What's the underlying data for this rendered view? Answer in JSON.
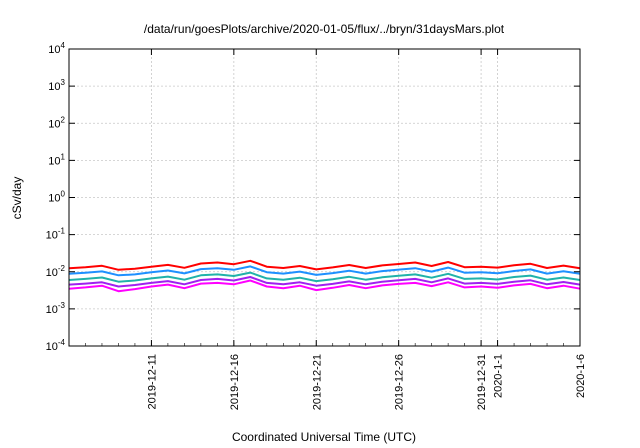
{
  "chart_data": {
    "type": "line",
    "title": "/data/run/goesPlots/archive/2020-01-05/flux/../bryn/31daysMars.plot",
    "xlabel": "Coordinated Universal Time (UTC)",
    "ylabel": "cSv/day",
    "y_scale": "log",
    "ylim": [
      0.0001,
      10000
    ],
    "y_ticks": [
      {
        "value": 0.0001,
        "base": "10",
        "exp": "-4"
      },
      {
        "value": 0.001,
        "base": "10",
        "exp": "-3"
      },
      {
        "value": 0.01,
        "base": "10",
        "exp": "-2"
      },
      {
        "value": 0.1,
        "base": "10",
        "exp": "-1"
      },
      {
        "value": 1,
        "base": "10",
        "exp": "0"
      },
      {
        "value": 10,
        "base": "10",
        "exp": "1"
      },
      {
        "value": 100,
        "base": "10",
        "exp": "2"
      },
      {
        "value": 1000,
        "base": "10",
        "exp": "3"
      },
      {
        "value": 10000,
        "base": "10",
        "exp": "4"
      }
    ],
    "xlim": [
      "2019-12-06",
      "2020-01-06"
    ],
    "x_ticks": [
      {
        "date": "2019-12-11",
        "label": "2019-12-11"
      },
      {
        "date": "2019-12-16",
        "label": "2019-12-16"
      },
      {
        "date": "2019-12-21",
        "label": "2019-12-21"
      },
      {
        "date": "2019-12-26",
        "label": "2019-12-26"
      },
      {
        "date": "2019-12-31",
        "label": "2019-12-31"
      },
      {
        "date": "2020-01-01",
        "label": "2020-1-1"
      },
      {
        "date": "2020-01-06",
        "label": "2020-1-6"
      }
    ],
    "grid": true,
    "legend": "none",
    "x": [
      "2019-12-06",
      "2019-12-07",
      "2019-12-08",
      "2019-12-09",
      "2019-12-10",
      "2019-12-11",
      "2019-12-12",
      "2019-12-13",
      "2019-12-14",
      "2019-12-15",
      "2019-12-16",
      "2019-12-17",
      "2019-12-18",
      "2019-12-19",
      "2019-12-20",
      "2019-12-21",
      "2019-12-22",
      "2019-12-23",
      "2019-12-24",
      "2019-12-25",
      "2019-12-26",
      "2019-12-27",
      "2019-12-28",
      "2019-12-29",
      "2019-12-30",
      "2019-12-31",
      "2020-01-01",
      "2020-01-02",
      "2020-01-03",
      "2020-01-04",
      "2020-01-05",
      "2020-01-06"
    ],
    "series": [
      {
        "color": "#ff00ff",
        "values": [
          0.0035,
          0.0038,
          0.0042,
          0.003,
          0.0034,
          0.004,
          0.0045,
          0.0036,
          0.0048,
          0.005,
          0.0046,
          0.0058,
          0.004,
          0.0036,
          0.0042,
          0.0032,
          0.0037,
          0.0044,
          0.0036,
          0.0043,
          0.0047,
          0.005,
          0.0041,
          0.0052,
          0.0038,
          0.004,
          0.0037,
          0.0043,
          0.0047,
          0.0036,
          0.0042,
          0.0035
        ]
      },
      {
        "color": "#a020f0",
        "values": [
          0.0045,
          0.0048,
          0.0052,
          0.004,
          0.0044,
          0.005,
          0.0056,
          0.0046,
          0.006,
          0.0064,
          0.0058,
          0.0072,
          0.005,
          0.0046,
          0.0052,
          0.0042,
          0.0047,
          0.0055,
          0.0046,
          0.0054,
          0.0059,
          0.0064,
          0.0052,
          0.0066,
          0.0048,
          0.005,
          0.0047,
          0.0054,
          0.0059,
          0.0046,
          0.0053,
          0.0045
        ]
      },
      {
        "color": "#20b2aa",
        "values": [
          0.006,
          0.0064,
          0.007,
          0.0054,
          0.0058,
          0.0066,
          0.0074,
          0.0061,
          0.008,
          0.0085,
          0.0077,
          0.0095,
          0.0066,
          0.0061,
          0.0069,
          0.0056,
          0.0063,
          0.0073,
          0.0061,
          0.0071,
          0.0078,
          0.0085,
          0.0069,
          0.0088,
          0.0064,
          0.0066,
          0.0062,
          0.0072,
          0.0079,
          0.0061,
          0.007,
          0.006
        ]
      },
      {
        "color": "#1e90ff",
        "values": [
          0.0088,
          0.0094,
          0.0102,
          0.008,
          0.0085,
          0.0097,
          0.0108,
          0.009,
          0.0118,
          0.0125,
          0.0113,
          0.0139,
          0.0097,
          0.0089,
          0.0101,
          0.0082,
          0.0092,
          0.0107,
          0.0089,
          0.0104,
          0.0114,
          0.0125,
          0.0101,
          0.0129,
          0.0094,
          0.0097,
          0.0091,
          0.0105,
          0.0116,
          0.0089,
          0.0103,
          0.0088
        ]
      },
      {
        "color": "#ff0000",
        "values": [
          0.0125,
          0.0133,
          0.0145,
          0.0113,
          0.0121,
          0.0137,
          0.0153,
          0.0128,
          0.0167,
          0.0177,
          0.016,
          0.0197,
          0.0137,
          0.0126,
          0.0143,
          0.0116,
          0.0131,
          0.0152,
          0.0126,
          0.0148,
          0.0162,
          0.0177,
          0.0143,
          0.0183,
          0.0133,
          0.0137,
          0.0129,
          0.0149,
          0.0164,
          0.0126,
          0.0146,
          0.0125
        ]
      }
    ]
  }
}
